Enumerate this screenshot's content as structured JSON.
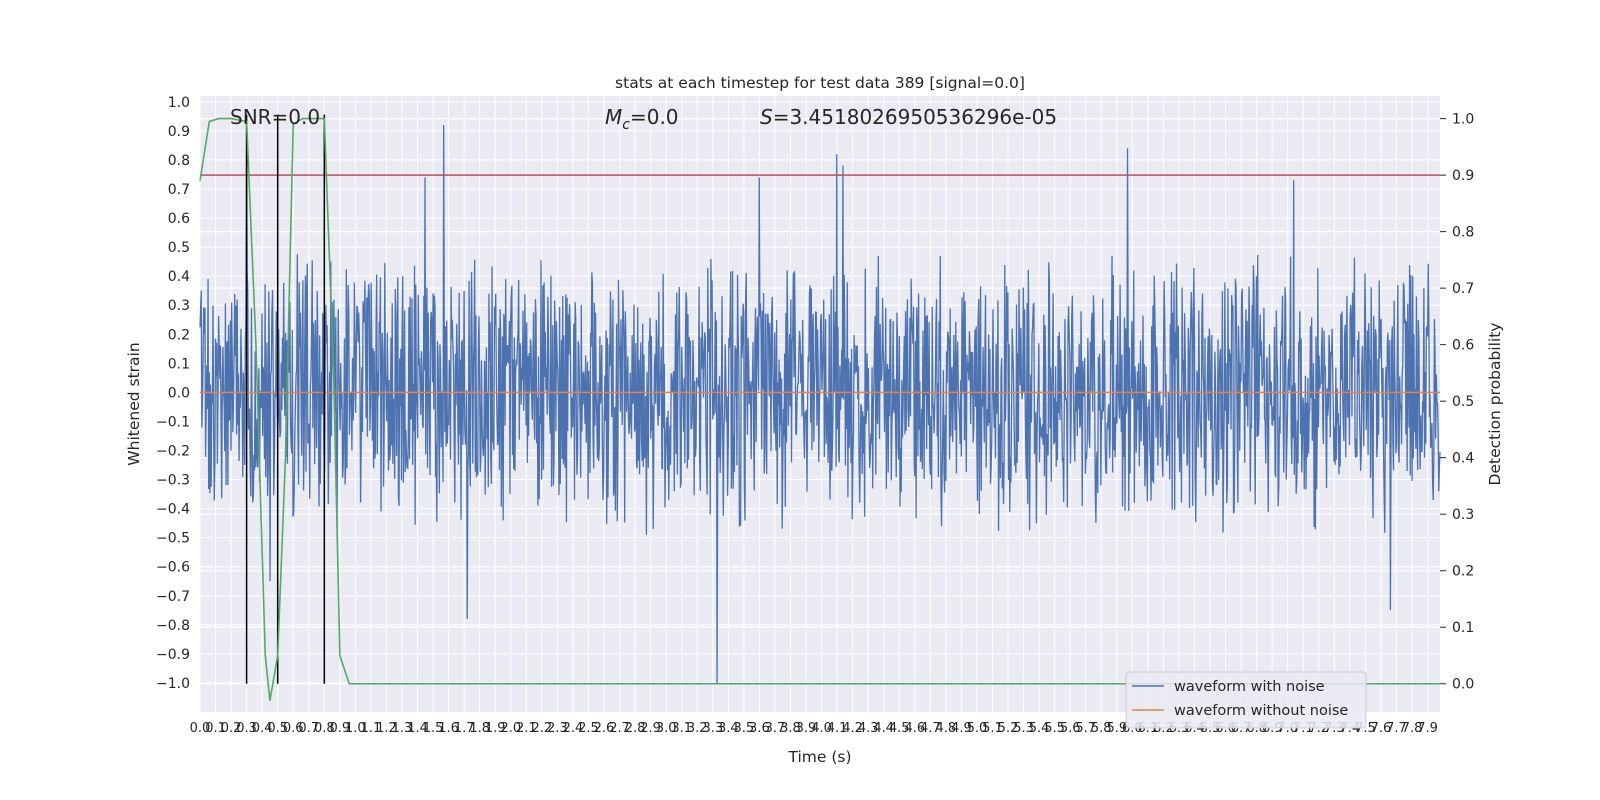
{
  "chart_data": {
    "type": "line",
    "title": "stats at each timestep for test data 389 [signal=0.0]",
    "xlabel": "Time (s)",
    "ylabel": "Whitened strain",
    "y2label": "Detection probability",
    "annotations": {
      "snr": "SNR=0.0",
      "mc_symbol": "M",
      "mc_sub": "c",
      "mc_value": "=0.0",
      "s_symbol": "S",
      "s_value": "=3.4518026950536296e-05"
    },
    "xlim": [
      0.0,
      7.98
    ],
    "ylim": [
      -1.1,
      1.02
    ],
    "y2lim": [
      -0.05,
      1.04
    ],
    "x_ticks": [
      "0.0",
      "0.1",
      "0.2",
      "0.3",
      "0.4",
      "0.5",
      "0.6",
      "0.7",
      "0.8",
      "0.9",
      "1.0",
      "1.1",
      "1.2",
      "1.3",
      "1.4",
      "1.5",
      "1.6",
      "1.7",
      "1.8",
      "1.9",
      "2.0",
      "2.1",
      "2.2",
      "2.3",
      "2.4",
      "2.5",
      "2.6",
      "2.7",
      "2.8",
      "2.9",
      "3.0",
      "3.1",
      "3.2",
      "3.3",
      "3.4",
      "3.5",
      "3.6",
      "3.7",
      "3.8",
      "3.9",
      "4.0",
      "4.1",
      "4.2",
      "4.3",
      "4.4",
      "4.5",
      "4.6",
      "4.7",
      "4.8",
      "4.9",
      "5.0",
      "5.1",
      "5.2",
      "5.3",
      "5.4",
      "5.5",
      "5.6",
      "5.7",
      "5.8",
      "5.9",
      "6.0",
      "6.1",
      "6.2",
      "6.3",
      "6.4",
      "6.5",
      "6.6",
      "6.7",
      "6.8",
      "6.9",
      "7.0",
      "7.1",
      "7.2",
      "7.3",
      "7.4",
      "7.5",
      "7.6",
      "7.7",
      "7.8",
      "7.9"
    ],
    "y_ticks": [
      "1.0",
      "0.9",
      "0.8",
      "0.7",
      "0.6",
      "0.5",
      "0.4",
      "0.3",
      "0.2",
      "0.1",
      "0.0",
      "−0.1",
      "−0.2",
      "−0.3",
      "−0.4",
      "−0.5",
      "−0.6",
      "−0.7",
      "−0.8",
      "−0.9",
      "−1.0"
    ],
    "y2_ticks": [
      "1.0",
      "0.9",
      "0.8",
      "0.7",
      "0.6",
      "0.5",
      "0.4",
      "0.3",
      "0.2",
      "0.1",
      "0.0"
    ],
    "grid": true,
    "legend_position": "lower-right",
    "series": [
      {
        "name": "waveform with noise",
        "color": "#4c72b0",
        "style": "dense noise, typical envelope ±0.45, spikes near ±0.8",
        "peaks": [
          {
            "x": 0.3,
            "y": 0.9
          },
          {
            "x": 0.45,
            "y": -0.65
          },
          {
            "x": 1.45,
            "y": 0.74
          },
          {
            "x": 1.57,
            "y": 0.92
          },
          {
            "x": 1.72,
            "y": -0.78
          },
          {
            "x": 3.33,
            "y": -1.0
          },
          {
            "x": 3.6,
            "y": 0.74
          },
          {
            "x": 4.1,
            "y": 0.82
          },
          {
            "x": 4.14,
            "y": 0.78
          },
          {
            "x": 5.97,
            "y": 0.84
          },
          {
            "x": 7.04,
            "y": 0.73
          },
          {
            "x": 7.66,
            "y": -0.75
          }
        ]
      },
      {
        "name": "waveform without noise",
        "color": "#dd8452",
        "x": [
          0.0,
          7.98
        ],
        "y": [
          0.0,
          0.0
        ]
      },
      {
        "name": "",
        "color": "#55a868",
        "axis": "right",
        "x": [
          0.0,
          0.06,
          0.12,
          0.2,
          0.3,
          0.36,
          0.42,
          0.45,
          0.5,
          0.55,
          0.6,
          0.66,
          0.72,
          0.8,
          0.86,
          0.9,
          0.96,
          1.0,
          7.98
        ],
        "y": [
          0.89,
          0.995,
          1.0,
          1.0,
          0.995,
          0.6,
          0.05,
          -0.03,
          0.05,
          0.4,
          0.99,
          1.0,
          1.0,
          1.0,
          0.55,
          0.05,
          0.0,
          0.0,
          0.0
        ]
      }
    ],
    "threshold": {
      "axis": "right",
      "value": 0.9,
      "color": "#c44e52"
    },
    "vlines": {
      "x": [
        0.3,
        0.5,
        0.8
      ],
      "color": "#000000"
    },
    "legend": [
      "waveform with noise",
      "waveform without noise"
    ]
  }
}
